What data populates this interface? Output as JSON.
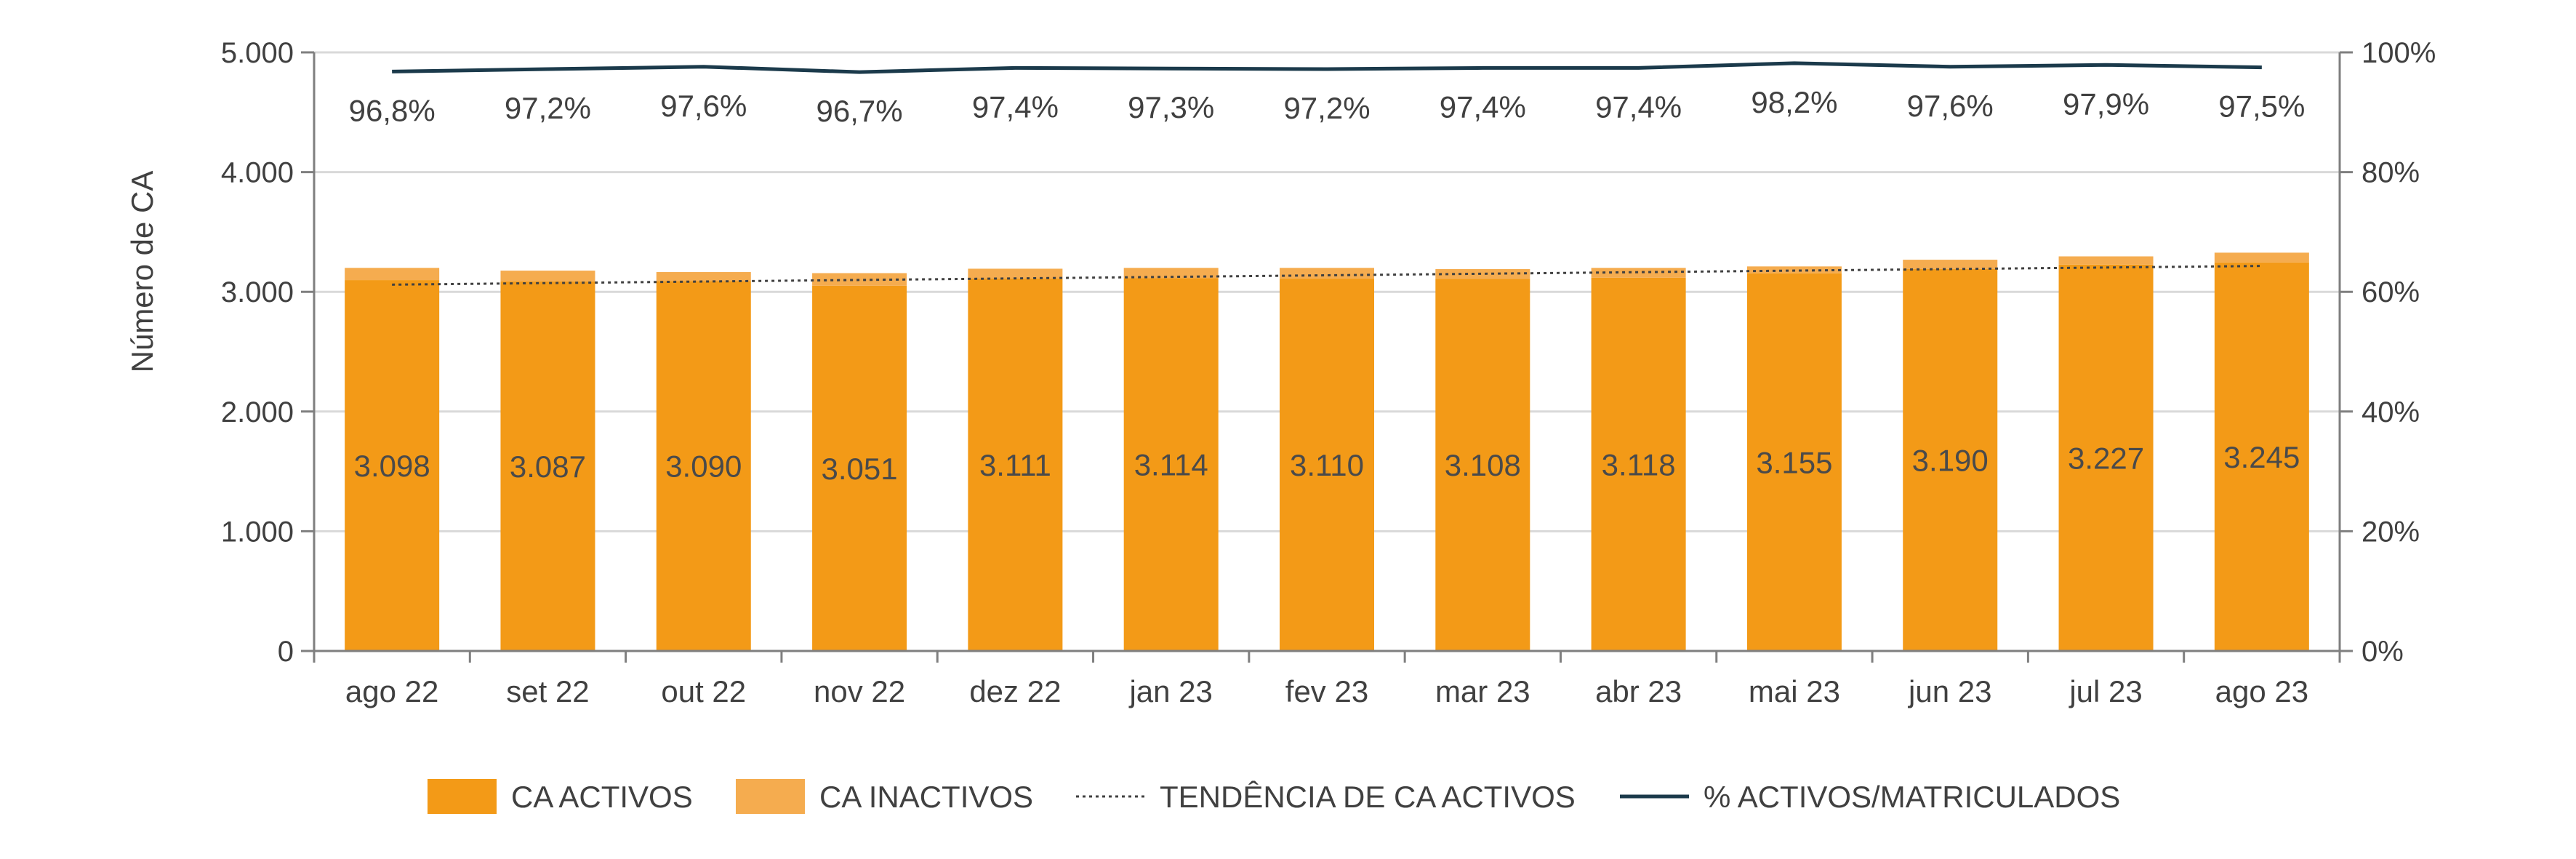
{
  "chart_data": {
    "type": "bar",
    "stacked": true,
    "title": "",
    "xlabel": "",
    "ylabel": "Número de CA",
    "ylim": [
      0,
      5000
    ],
    "y_ticks": [
      "0",
      "1.000",
      "2.000",
      "3.000",
      "4.000",
      "5.000"
    ],
    "y2lim": [
      0,
      100
    ],
    "y2_ticks": [
      "0%",
      "20%",
      "40%",
      "60%",
      "80%",
      "100%"
    ],
    "grid": true,
    "legend_position": "bottom",
    "categories": [
      "ago 22",
      "set 22",
      "out 22",
      "nov 22",
      "dez 22",
      "jan 23",
      "fev 23",
      "mar 23",
      "abr 23",
      "mai 23",
      "jun 23",
      "jul 23",
      "ago 23"
    ],
    "series": [
      {
        "name": "CA ACTIVOS",
        "kind": "bar",
        "color": "#F39A17",
        "values": [
          3098,
          3087,
          3090,
          3051,
          3111,
          3114,
          3110,
          3108,
          3118,
          3155,
          3190,
          3227,
          3245
        ],
        "labels": [
          "3.098",
          "3.087",
          "3.090",
          "3.051",
          "3.111",
          "3.114",
          "3.110",
          "3.108",
          "3.118",
          "3.155",
          "3.190",
          "3.227",
          "3.245"
        ]
      },
      {
        "name": "CA INACTIVOS",
        "kind": "bar",
        "color": "#F5AC4F",
        "values": [
          102,
          90,
          75,
          105,
          82,
          86,
          90,
          82,
          82,
          57,
          78,
          69,
          82
        ]
      },
      {
        "name": "TENDÊNCIA DE CA ACTIVOS",
        "kind": "trend",
        "color": "#404040",
        "values": [
          3060,
          3073,
          3086,
          3099,
          3112,
          3125,
          3138,
          3151,
          3164,
          3177,
          3190,
          3203,
          3216
        ]
      },
      {
        "name": "% ACTIVOS/MATRICULADOS",
        "kind": "line",
        "axis": "y2",
        "color": "#1B3A4B",
        "values": [
          96.8,
          97.2,
          97.6,
          96.7,
          97.4,
          97.3,
          97.2,
          97.4,
          97.4,
          98.2,
          97.6,
          97.9,
          97.5
        ],
        "labels": [
          "96,8%",
          "97,2%",
          "97,6%",
          "96,7%",
          "97,4%",
          "97,3%",
          "97,2%",
          "97,4%",
          "97,4%",
          "98,2%",
          "97,6%",
          "97,9%",
          "97,5%"
        ]
      }
    ]
  }
}
